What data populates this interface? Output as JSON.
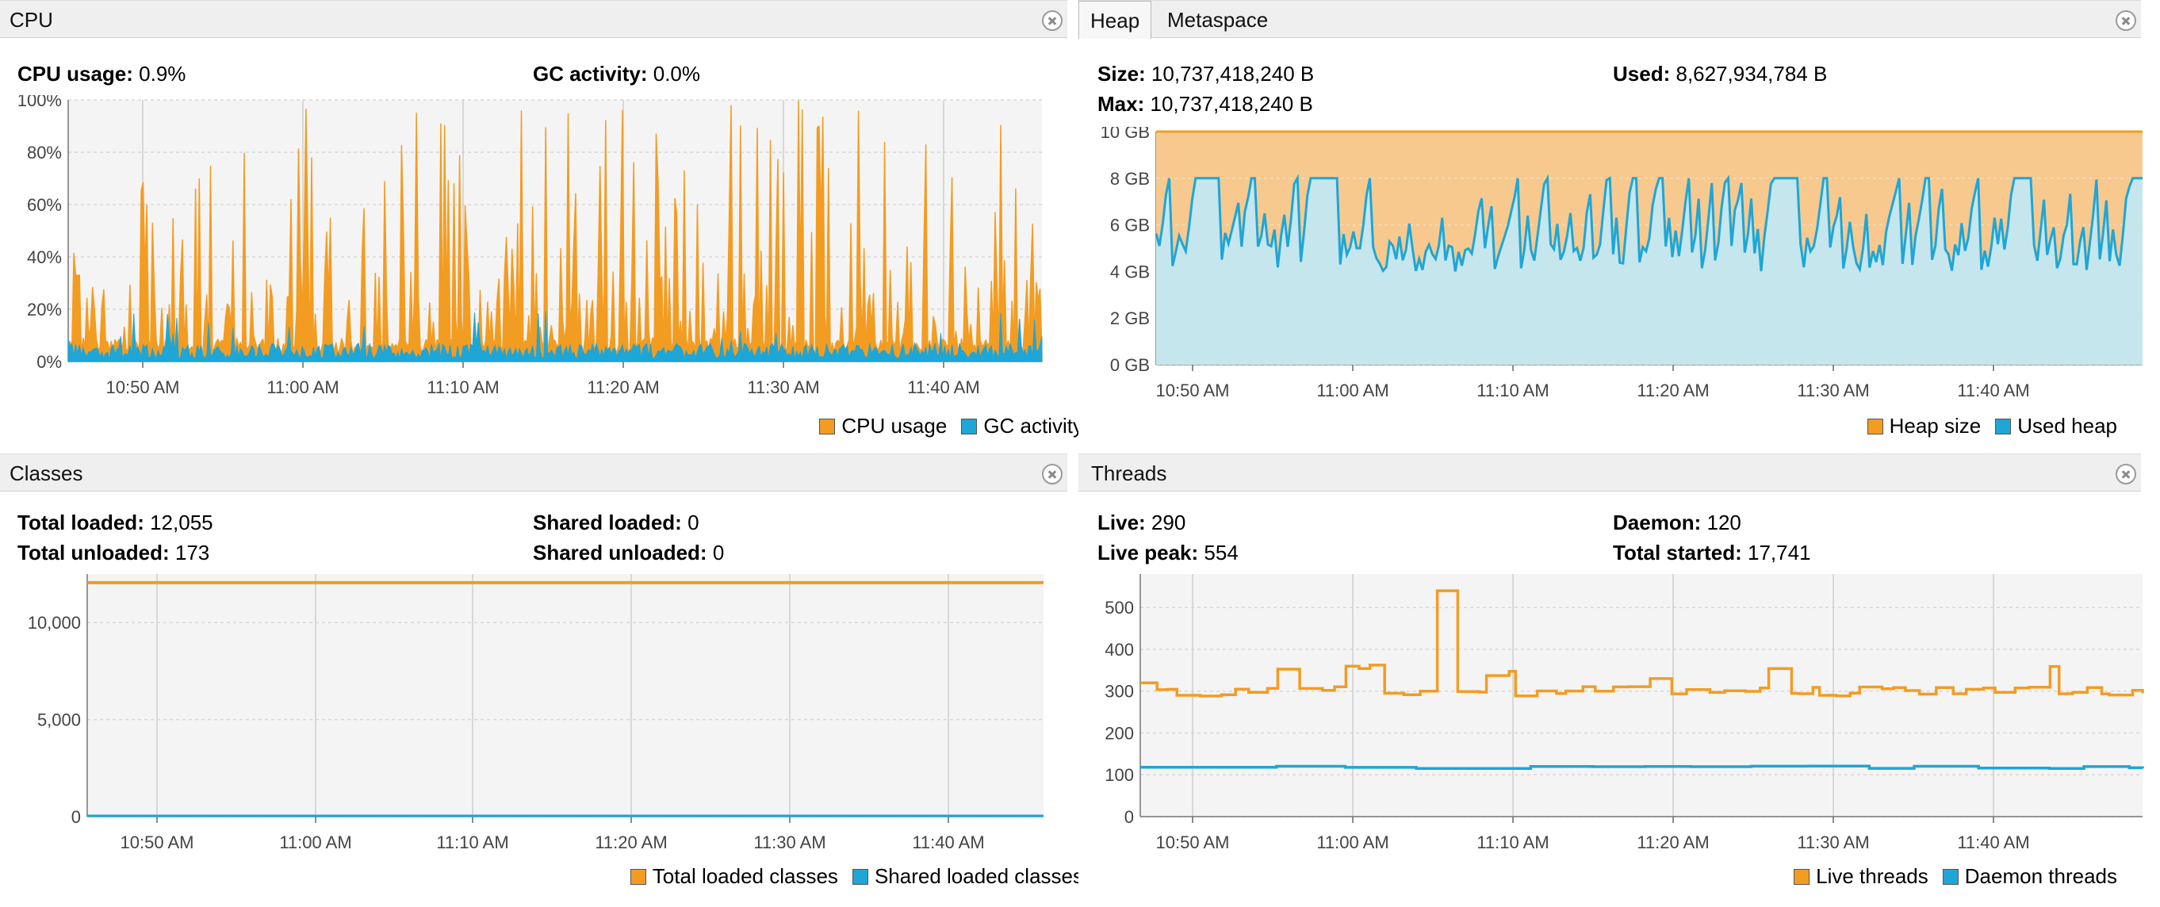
{
  "colors": {
    "orange": "#f39c22",
    "blue": "#1ea6d6",
    "heap_fill": "#f7c98f",
    "used_fill": "#bfe9f7"
  },
  "cpu": {
    "title": "CPU",
    "stat1_label": "CPU usage:",
    "stat1_value": "0.9%",
    "stat2_label": "GC activity:",
    "stat2_value": "0.0%",
    "legend": [
      "CPU usage",
      "GC activity"
    ],
    "chart_data": {
      "type": "area",
      "x_ticks": [
        "10:50 AM",
        "11:00 AM",
        "11:10 AM",
        "11:20 AM",
        "11:30 AM",
        "11:40 AM"
      ],
      "y_ticks": [
        "0%",
        "20%",
        "40%",
        "60%",
        "80%",
        "100%"
      ],
      "ylim": [
        0,
        100
      ],
      "series": [
        {
          "name": "CPU usage"
        },
        {
          "name": "GC activity"
        }
      ]
    }
  },
  "heap": {
    "tabs": [
      "Heap",
      "Metaspace"
    ],
    "size_label": "Size:",
    "size_value": "10,737,418,240 B",
    "used_label": "Used:",
    "used_value": "8,627,934,784 B",
    "max_label": "Max:",
    "max_value": "10,737,418,240 B",
    "legend": [
      "Heap size",
      "Used heap"
    ],
    "chart_data": {
      "type": "area",
      "x_ticks": [
        "10:50 AM",
        "11:00 AM",
        "11:10 AM",
        "11:20 AM",
        "11:30 AM",
        "11:40 AM"
      ],
      "y_ticks": [
        "0 GB",
        "2 GB",
        "4 GB",
        "6 GB",
        "8 GB",
        "10 GB"
      ],
      "ylim": [
        0,
        10
      ],
      "heap_size_gb": 10,
      "used_range_gb": [
        4,
        8
      ],
      "series": [
        {
          "name": "Heap size"
        },
        {
          "name": "Used heap"
        }
      ]
    }
  },
  "classes": {
    "title": "Classes",
    "l1": "Total loaded:",
    "v1": "12,055",
    "l2": "Total unloaded:",
    "v2": "173",
    "l3": "Shared loaded:",
    "v3": "0",
    "l4": "Shared unloaded:",
    "v4": "0",
    "legend": [
      "Total loaded classes",
      "Shared loaded classes"
    ],
    "chart_data": {
      "type": "line",
      "x_ticks": [
        "10:50 AM",
        "11:00 AM",
        "11:10 AM",
        "11:20 AM",
        "11:30 AM",
        "11:40 AM"
      ],
      "y_ticks": [
        "0",
        "5,000",
        "10,000"
      ],
      "ylim": [
        0,
        12500
      ],
      "series": [
        {
          "name": "Total loaded classes",
          "value": 12055
        },
        {
          "name": "Shared loaded classes",
          "value": 0
        }
      ]
    }
  },
  "threads": {
    "title": "Threads",
    "l1": "Live:",
    "v1": "290",
    "l2": "Live peak:",
    "v2": "554",
    "l3": "Daemon:",
    "v3": "120",
    "l4": "Total started:",
    "v4": "17,741",
    "legend": [
      "Live threads",
      "Daemon threads"
    ],
    "chart_data": {
      "type": "line",
      "x_ticks": [
        "10:50 AM",
        "11:00 AM",
        "11:10 AM",
        "11:20 AM",
        "11:30 AM",
        "11:40 AM"
      ],
      "y_ticks": [
        "0",
        "100",
        "200",
        "300",
        "400",
        "500"
      ],
      "ylim": [
        0,
        580
      ],
      "live_peak": 540,
      "live_baseline": 300,
      "daemon_level": 118,
      "series": [
        {
          "name": "Live threads"
        },
        {
          "name": "Daemon threads"
        }
      ]
    }
  }
}
